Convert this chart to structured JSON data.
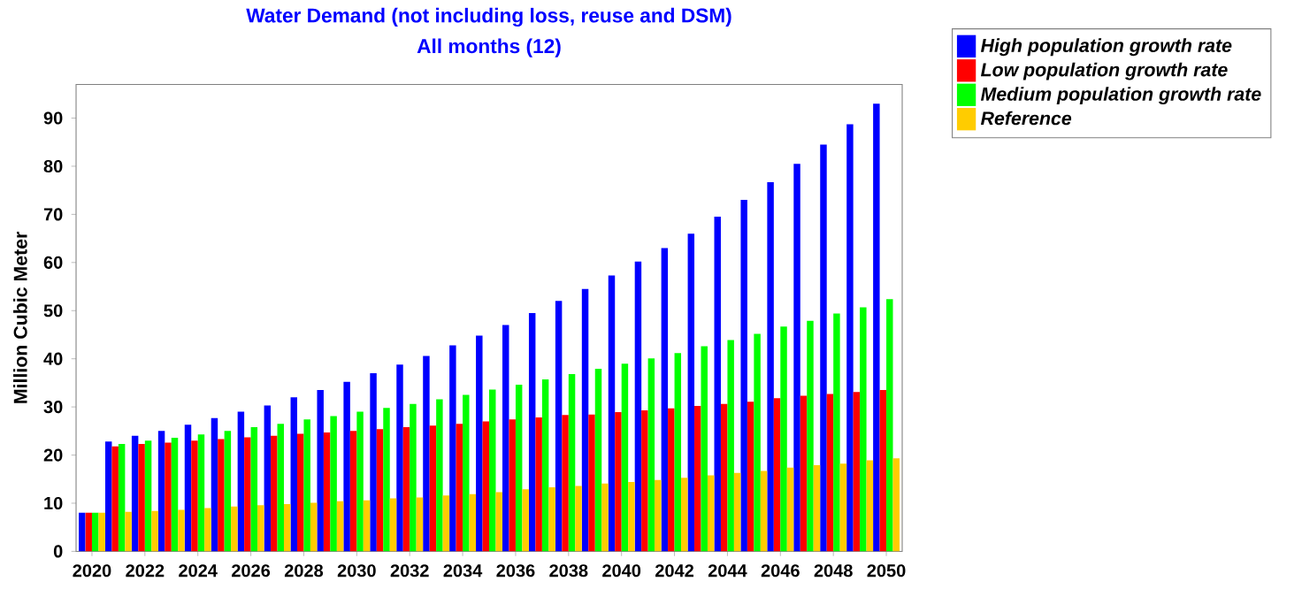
{
  "chart_data": {
    "type": "bar",
    "title": "Water Demand (not including loss, reuse and DSM)",
    "subtitle": "All months (12)",
    "ylabel": "Million Cubic Meter",
    "categories": [
      "2020",
      null,
      "2022",
      null,
      "2024",
      null,
      "2026",
      null,
      "2028",
      null,
      "2030",
      null,
      "2032",
      null,
      "2034",
      null,
      "2036",
      null,
      "2038",
      null,
      "2040",
      null,
      "2042",
      null,
      "2044",
      null,
      "2046",
      null,
      "2048",
      null,
      "2050"
    ],
    "series": [
      {
        "name": "High population growth rate",
        "color": "#0000ff",
        "values": [
          8,
          22.8,
          24,
          25,
          26.3,
          27.7,
          29,
          30.3,
          32,
          33.5,
          35.2,
          37,
          38.8,
          40.6,
          42.8,
          44.8,
          47,
          49.5,
          52,
          54.5,
          57.3,
          60.2,
          63,
          66,
          69.5,
          73,
          76.7,
          80.5,
          84.5,
          88.7,
          93
        ]
      },
      {
        "name": "Low population growth rate",
        "color": "#ff0000",
        "values": [
          8,
          21.8,
          22.3,
          22.6,
          23,
          23.3,
          23.7,
          24,
          24.4,
          24.7,
          25,
          25.4,
          25.8,
          26.1,
          26.5,
          27,
          27.4,
          27.8,
          28.3,
          28.4,
          28.9,
          29.3,
          29.7,
          30.2,
          30.6,
          31.1,
          31.8,
          32.3,
          32.7,
          33.1,
          33.5
        ]
      },
      {
        "name": "Medium population growth rate",
        "color": "#00ff00",
        "values": [
          8,
          22.3,
          23,
          23.6,
          24.3,
          25,
          25.8,
          26.5,
          27.4,
          28.1,
          29,
          29.8,
          30.6,
          31.6,
          32.5,
          33.6,
          34.6,
          35.7,
          36.8,
          37.9,
          39,
          40.1,
          41.2,
          42.6,
          43.9,
          45.2,
          46.7,
          47.9,
          49.4,
          50.7,
          52.4
        ]
      },
      {
        "name": "Reference",
        "color": "#ffcc00",
        "values": [
          8,
          8.2,
          8.4,
          8.6,
          9,
          9.3,
          9.6,
          9.8,
          10.1,
          10.4,
          10.6,
          11,
          11.2,
          11.6,
          11.9,
          12.3,
          12.9,
          13.3,
          13.6,
          14.1,
          14.4,
          14.8,
          15.3,
          15.8,
          16.3,
          16.7,
          17.4,
          17.9,
          18.2,
          18.9,
          19.3
        ]
      }
    ],
    "ylim": [
      0,
      97
    ],
    "yticks": [
      0,
      10,
      20,
      30,
      40,
      50,
      60,
      70,
      80,
      90
    ],
    "grid": false,
    "legend": "top right"
  }
}
